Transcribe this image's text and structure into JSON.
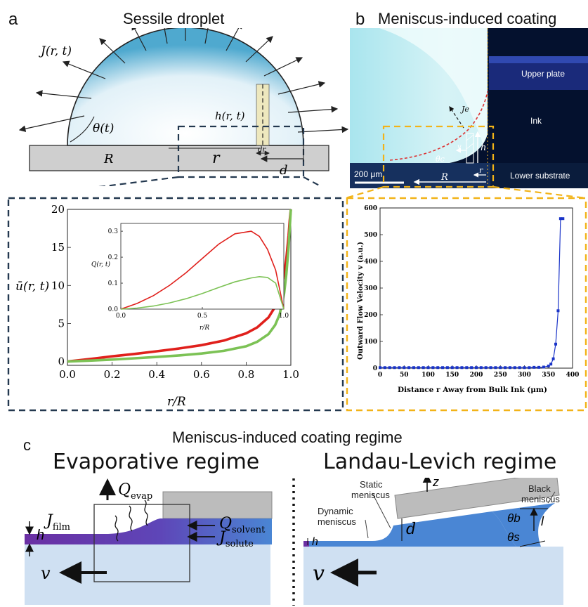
{
  "panel_a": {
    "letter": "a",
    "title": "Sessile droplet",
    "flux_label": "J(r, t)",
    "angle_label": "θ(t)",
    "height_label": "h(r, t)",
    "radius_label": "R",
    "r_label": "r",
    "dr_label": "dr",
    "d_label": "d",
    "colors": {
      "droplet_edge": "#5fb3d6",
      "dashed_box": "#23384f",
      "substrate": "#cfcfcf",
      "slab": "#efe7b8"
    }
  },
  "panel_b": {
    "letter": "b",
    "title": "Meniscus-induced coating",
    "labels": {
      "upper_plate": "Upper plate",
      "ink": "Ink",
      "lower_substrate": "Lower substrate",
      "scale": "200 μm",
      "R": "R",
      "r": "r",
      "h": "h",
      "v": "v",
      "theta_c": "θc",
      "J_e": "Je"
    },
    "colors": {
      "dashed_box": "#f2b318",
      "plate": "#1a2a7a",
      "ink": "#04112e"
    }
  },
  "chart_inset_a": {
    "ylabel": "ū(r, t)",
    "xlabel": "r/R",
    "inset_ylabel": "Q(r, t)",
    "inset_xlabel": "r/R"
  },
  "chart_b": {
    "ylabel": "Outward Flow Velocity v (a.u.)",
    "xlabel": "Distance r Away from Bulk Ink (μm)"
  },
  "chart_data": [
    {
      "type": "line",
      "xlabel": "r/R",
      "ylabel": "ū(r, t)",
      "xlim": [
        0,
        1
      ],
      "ylim": [
        -0.5,
        20
      ],
      "xticks": [
        "0.0",
        "0.2",
        "0.4",
        "0.6",
        "0.8",
        "1.0"
      ],
      "yticks": [
        "0",
        "5",
        "10",
        "15",
        "20"
      ],
      "x": [
        0,
        0.1,
        0.2,
        0.3,
        0.4,
        0.5,
        0.6,
        0.7,
        0.8,
        0.85,
        0.9,
        0.93,
        0.95,
        0.97,
        0.98,
        0.99,
        0.995,
        1.0
      ],
      "series": [
        {
          "color": "#e0201c",
          "values": [
            0,
            0.32,
            0.68,
            1.0,
            1.35,
            1.72,
            2.15,
            2.75,
            3.7,
            4.5,
            5.8,
            7.2,
            8.8,
            11.5,
            13.5,
            16.5,
            18.5,
            20
          ]
        },
        {
          "color": "#7cc255",
          "values": [
            0,
            0.12,
            0.26,
            0.42,
            0.6,
            0.8,
            1.05,
            1.4,
            2.0,
            2.6,
            3.6,
            4.8,
            6.2,
            9.0,
            11.5,
            15.0,
            17.5,
            20
          ]
        }
      ]
    },
    {
      "type": "line",
      "xlabel": "r/R",
      "ylabel": "Q(r, t)",
      "xlim": [
        0,
        1
      ],
      "ylim": [
        0,
        0.33
      ],
      "xticks": [
        "0.0",
        "0.5",
        "1.0"
      ],
      "yticks": [
        "0.0",
        "0.1",
        "0.2",
        "0.3"
      ],
      "x": [
        0,
        0.1,
        0.2,
        0.3,
        0.4,
        0.5,
        0.6,
        0.7,
        0.8,
        0.85,
        0.9,
        0.95,
        1.0
      ],
      "series": [
        {
          "color": "#e0201c",
          "values": [
            0,
            0.022,
            0.052,
            0.092,
            0.14,
            0.195,
            0.25,
            0.29,
            0.3,
            0.28,
            0.23,
            0.15,
            0
          ]
        },
        {
          "color": "#7cc255",
          "values": [
            0,
            0.004,
            0.012,
            0.024,
            0.04,
            0.06,
            0.083,
            0.105,
            0.12,
            0.125,
            0.122,
            0.1,
            0
          ]
        }
      ]
    },
    {
      "type": "scatter",
      "xlabel": "Distance r Away from Bulk Ink (μm)",
      "ylabel": "Outward Flow Velocity v (a.u.)",
      "xlim": [
        0,
        400
      ],
      "ylim": [
        0,
        600
      ],
      "xticks": [
        "0",
        "50",
        "100",
        "150",
        "200",
        "250",
        "300",
        "350",
        "400"
      ],
      "yticks": [
        "0",
        "100",
        "200",
        "300",
        "400",
        "500",
        "600"
      ],
      "x": [
        0,
        10,
        20,
        30,
        40,
        50,
        60,
        70,
        80,
        90,
        100,
        110,
        120,
        130,
        140,
        150,
        160,
        170,
        180,
        190,
        200,
        210,
        220,
        230,
        240,
        250,
        260,
        270,
        280,
        290,
        300,
        310,
        320,
        330,
        340,
        350,
        355,
        360,
        365,
        370,
        375,
        380
      ],
      "series": [
        {
          "color": "#1a34c8",
          "values": [
            2,
            2,
            2,
            2,
            2,
            2,
            2,
            2,
            2,
            2,
            2,
            2,
            2,
            2,
            2,
            2,
            2,
            2,
            2,
            2,
            2,
            2,
            2,
            2,
            2,
            2,
            2,
            2,
            2,
            2,
            2,
            2,
            3,
            3,
            4,
            8,
            15,
            35,
            90,
            215,
            560,
            560
          ]
        }
      ]
    }
  ],
  "panel_c": {
    "letter": "c",
    "title": "Meniscus-induced coating regime",
    "evap": {
      "title": "Evaporative regime",
      "Q_evap": "Q",
      "Q_evap_sub": "evap",
      "J_film": "J",
      "J_film_sub": "film",
      "Q_solvent": "Q",
      "Q_solvent_sub": "solvent",
      "J_solute": "J",
      "J_solute_sub": "solute",
      "h": "h",
      "v": "v"
    },
    "ll": {
      "title": "Landau-Levich regime",
      "static": "Static\nmeniscus",
      "dynamic": "Dynamic\nmeniscus",
      "black": "Black\nmeniscus",
      "z": "z",
      "d": "d",
      "l": "l",
      "theta_b": "θb",
      "theta_s": "θs",
      "h": "h",
      "v": "v"
    },
    "colors": {
      "liquid": "#4a86d4",
      "substrate": "#cfe0f2",
      "film": "#6a2fa3",
      "plate": "#bcbcbc"
    }
  }
}
